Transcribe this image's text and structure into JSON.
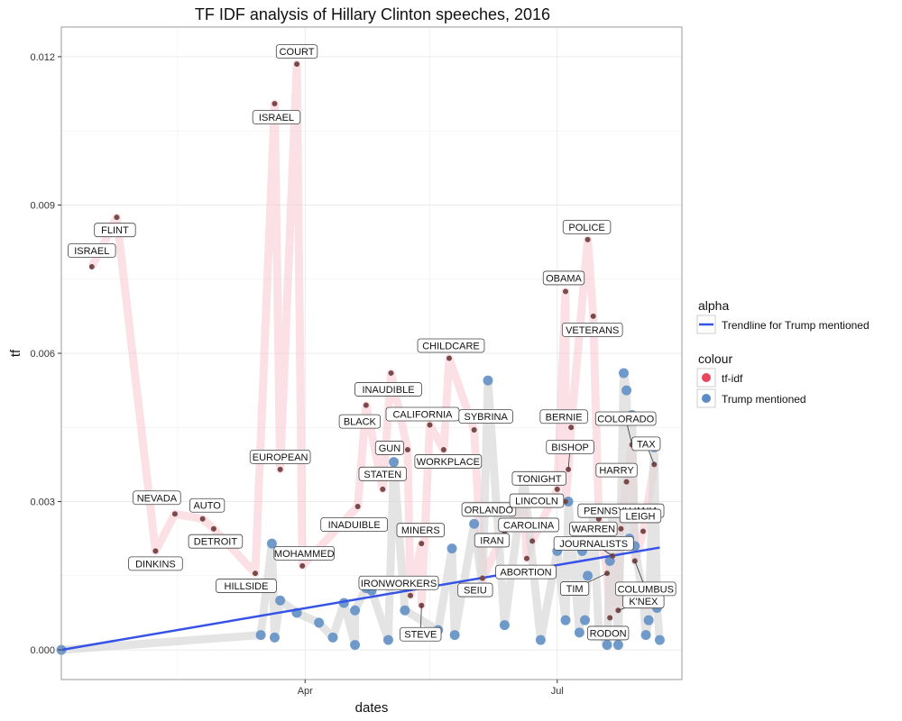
{
  "chart_data": {
    "type": "line",
    "title": "TF IDF analysis of Hillary Clinton speeches, 2016",
    "xlabel": "dates",
    "ylabel": "tf",
    "x_ticks": [
      {
        "label": "Apr",
        "date": "2016-04-01"
      },
      {
        "label": "Jul",
        "date": "2016-07-01"
      }
    ],
    "xlim": [
      "2016-01-04",
      "2016-08-15"
    ],
    "y_ticks": [
      "0.000",
      "0.003",
      "0.006",
      "0.009",
      "0.012"
    ],
    "ylim": [
      -0.0006,
      0.0126
    ],
    "grid": true,
    "legend_position": "right",
    "legend": {
      "alpha_title": "alpha",
      "alpha_entries": [
        {
          "label": "Trendline for Trump mentioned",
          "color": "#3553e6"
        }
      ],
      "colour_title": "colour",
      "colour_entries": [
        {
          "label": "tf-idf",
          "color": "#e8455e"
        },
        {
          "label": "Trump mentioned",
          "color": "#5b8cc4"
        }
      ]
    },
    "colors": {
      "tfidf_line": "#f8c8cf",
      "tfidf_point": "#7a4a4a",
      "trump_line": "#d9d9d9",
      "trump_point": "#5b8cc4",
      "trendline": "#3553e6",
      "panel_border": "#999999",
      "grid": "#ebebeb"
    },
    "series": [
      {
        "name": "tf-idf",
        "points": [
          {
            "date": "2016-01-15",
            "value": 0.00775,
            "label": "ISRAEL"
          },
          {
            "date": "2016-01-24",
            "value": 0.00875,
            "label": "FLINT"
          },
          {
            "date": "2016-02-07",
            "value": 0.002,
            "label": "DINKINS"
          },
          {
            "date": "2016-02-14",
            "value": 0.00275,
            "label": "NEVADA"
          },
          {
            "date": "2016-02-24",
            "value": 0.00265,
            "label": "AUTO"
          },
          {
            "date": "2016-02-28",
            "value": 0.00245,
            "label": "DETROIT"
          },
          {
            "date": "2016-03-14",
            "value": 0.00155,
            "label": "HILLSIDE"
          },
          {
            "date": "2016-03-21",
            "value": 0.01105,
            "label": "ISRAEL"
          },
          {
            "date": "2016-03-23",
            "value": 0.00365,
            "label": "EUROPEAN"
          },
          {
            "date": "2016-03-29",
            "value": 0.01185,
            "label": "COURT"
          },
          {
            "date": "2016-03-31",
            "value": 0.0017,
            "label": "MOHAMMED"
          },
          {
            "date": "2016-04-20",
            "value": 0.0029,
            "label": "INADUIBLE"
          },
          {
            "date": "2016-04-23",
            "value": 0.00495,
            "label": "BLACK"
          },
          {
            "date": "2016-04-29",
            "value": 0.00325,
            "label": "STATEN"
          },
          {
            "date": "2016-05-02",
            "value": 0.0056,
            "label": "INAUDIBLE"
          },
          {
            "date": "2016-05-08",
            "value": 0.00405,
            "label": "GUN"
          },
          {
            "date": "2016-05-09",
            "value": 0.0011,
            "label": "IRONWORKERS"
          },
          {
            "date": "2016-05-13",
            "value": 0.00215,
            "label": "MINERS"
          },
          {
            "date": "2016-05-13",
            "value": 0.0009,
            "label": "STEVE"
          },
          {
            "date": "2016-05-16",
            "value": 0.00455,
            "label": "CALIFORNIA"
          },
          {
            "date": "2016-05-21",
            "value": 0.00405,
            "label": "WORKPLACE"
          },
          {
            "date": "2016-05-23",
            "value": 0.0059,
            "label": "CHILDCARE"
          },
          {
            "date": "2016-06-01",
            "value": 0.00445,
            "label": "SYBRINA"
          },
          {
            "date": "2016-06-04",
            "value": 0.00145,
            "label": "SEIU"
          },
          {
            "date": "2016-06-12",
            "value": 0.0024,
            "label": "IRAN"
          },
          {
            "date": "2016-06-19",
            "value": 0.00295,
            "label": "ORLANDO"
          },
          {
            "date": "2016-06-20",
            "value": 0.00185,
            "label": "ABORTION"
          },
          {
            "date": "2016-06-22",
            "value": 0.0022,
            "label": "CAROLINA"
          },
          {
            "date": "2016-07-01",
            "value": 0.00325,
            "label": "TONIGHT"
          },
          {
            "date": "2016-07-04",
            "value": 0.00725,
            "label": "OBAMA"
          },
          {
            "date": "2016-07-04",
            "value": 0.003,
            "label": "LINCOLN"
          },
          {
            "date": "2016-07-05",
            "value": 0.00365,
            "label": "BISHOP"
          },
          {
            "date": "2016-07-06",
            "value": 0.0045,
            "label": "BERNIE"
          },
          {
            "date": "2016-07-12",
            "value": 0.0083,
            "label": "POLICE"
          },
          {
            "date": "2016-07-14",
            "value": 0.00675,
            "label": "VETERANS"
          },
          {
            "date": "2016-07-16",
            "value": 0.00265,
            "label": "WARREN"
          },
          {
            "date": "2016-07-19",
            "value": 0.00155,
            "label": "TIM"
          },
          {
            "date": "2016-07-20",
            "value": 0.00065,
            "label": "RODON"
          },
          {
            "date": "2016-07-21",
            "value": 0.0019,
            "label": "JOURNALISTS"
          },
          {
            "date": "2016-07-23",
            "value": 0.0008,
            "label": "K'NEX"
          },
          {
            "date": "2016-07-24",
            "value": 0.00245,
            "label": "PENNSYLVANIA"
          },
          {
            "date": "2016-07-26",
            "value": 0.0034,
            "label": "HARRY"
          },
          {
            "date": "2016-07-28",
            "value": 0.00415,
            "label": "COLORADO"
          },
          {
            "date": "2016-07-29",
            "value": 0.0018,
            "label": "COLUMBUS"
          },
          {
            "date": "2016-08-01",
            "value": 0.0024,
            "label": "LEIGH"
          },
          {
            "date": "2016-08-05",
            "value": 0.00375,
            "label": "TAX"
          }
        ]
      },
      {
        "name": "Trump mentioned",
        "points": [
          {
            "date": "2016-01-04",
            "value": 0.0
          },
          {
            "date": "2016-03-16",
            "value": 0.0003
          },
          {
            "date": "2016-03-20",
            "value": 0.00215
          },
          {
            "date": "2016-03-21",
            "value": 0.00025
          },
          {
            "date": "2016-03-23",
            "value": 0.001
          },
          {
            "date": "2016-03-29",
            "value": 0.00075
          },
          {
            "date": "2016-04-06",
            "value": 0.00055
          },
          {
            "date": "2016-04-11",
            "value": 0.00025
          },
          {
            "date": "2016-04-15",
            "value": 0.00095
          },
          {
            "date": "2016-04-19",
            "value": 0.0001
          },
          {
            "date": "2016-04-19",
            "value": 0.0008
          },
          {
            "date": "2016-04-23",
            "value": 0.00125
          },
          {
            "date": "2016-04-25",
            "value": 0.0012
          },
          {
            "date": "2016-05-01",
            "value": 0.0002
          },
          {
            "date": "2016-05-03",
            "value": 0.0038
          },
          {
            "date": "2016-05-07",
            "value": 0.0008
          },
          {
            "date": "2016-05-19",
            "value": 0.0004
          },
          {
            "date": "2016-05-24",
            "value": 0.00205
          },
          {
            "date": "2016-05-25",
            "value": 0.0003
          },
          {
            "date": "2016-06-01",
            "value": 0.00255
          },
          {
            "date": "2016-06-04",
            "value": 0.00125
          },
          {
            "date": "2016-06-06",
            "value": 0.00545
          },
          {
            "date": "2016-06-12",
            "value": 0.0005
          },
          {
            "date": "2016-06-19",
            "value": 0.00345
          },
          {
            "date": "2016-06-25",
            "value": 0.0002
          },
          {
            "date": "2016-07-01",
            "value": 0.002
          },
          {
            "date": "2016-07-04",
            "value": 0.0006
          },
          {
            "date": "2016-07-05",
            "value": 0.003
          },
          {
            "date": "2016-07-09",
            "value": 0.00035
          },
          {
            "date": "2016-07-10",
            "value": 0.002
          },
          {
            "date": "2016-07-11",
            "value": 0.0006
          },
          {
            "date": "2016-07-12",
            "value": 0.0015
          },
          {
            "date": "2016-07-14",
            "value": 0.0028
          },
          {
            "date": "2016-07-16",
            "value": 0.00035
          },
          {
            "date": "2016-07-17",
            "value": 0.0003
          },
          {
            "date": "2016-07-19",
            "value": 0.0001
          },
          {
            "date": "2016-07-20",
            "value": 0.0018
          },
          {
            "date": "2016-07-21",
            "value": 0.00285
          },
          {
            "date": "2016-07-23",
            "value": 0.0001
          },
          {
            "date": "2016-07-25",
            "value": 0.0056
          },
          {
            "date": "2016-07-26",
            "value": 0.00525
          },
          {
            "date": "2016-07-27",
            "value": 0.00225
          },
          {
            "date": "2016-07-28",
            "value": 0.00475
          },
          {
            "date": "2016-07-29",
            "value": 0.0021
          },
          {
            "date": "2016-08-01",
            "value": 0.00105
          },
          {
            "date": "2016-08-02",
            "value": 0.0003
          },
          {
            "date": "2016-08-03",
            "value": 0.0006
          },
          {
            "date": "2016-08-05",
            "value": 0.0041
          },
          {
            "date": "2016-08-06",
            "value": 0.00085
          },
          {
            "date": "2016-08-07",
            "value": 0.0002
          }
        ]
      }
    ],
    "trendline": {
      "name": "Trendline for Trump mentioned",
      "start": {
        "date": "2016-01-04",
        "value": 0.0
      },
      "end": {
        "date": "2016-08-07",
        "value": 0.00207
      }
    }
  }
}
